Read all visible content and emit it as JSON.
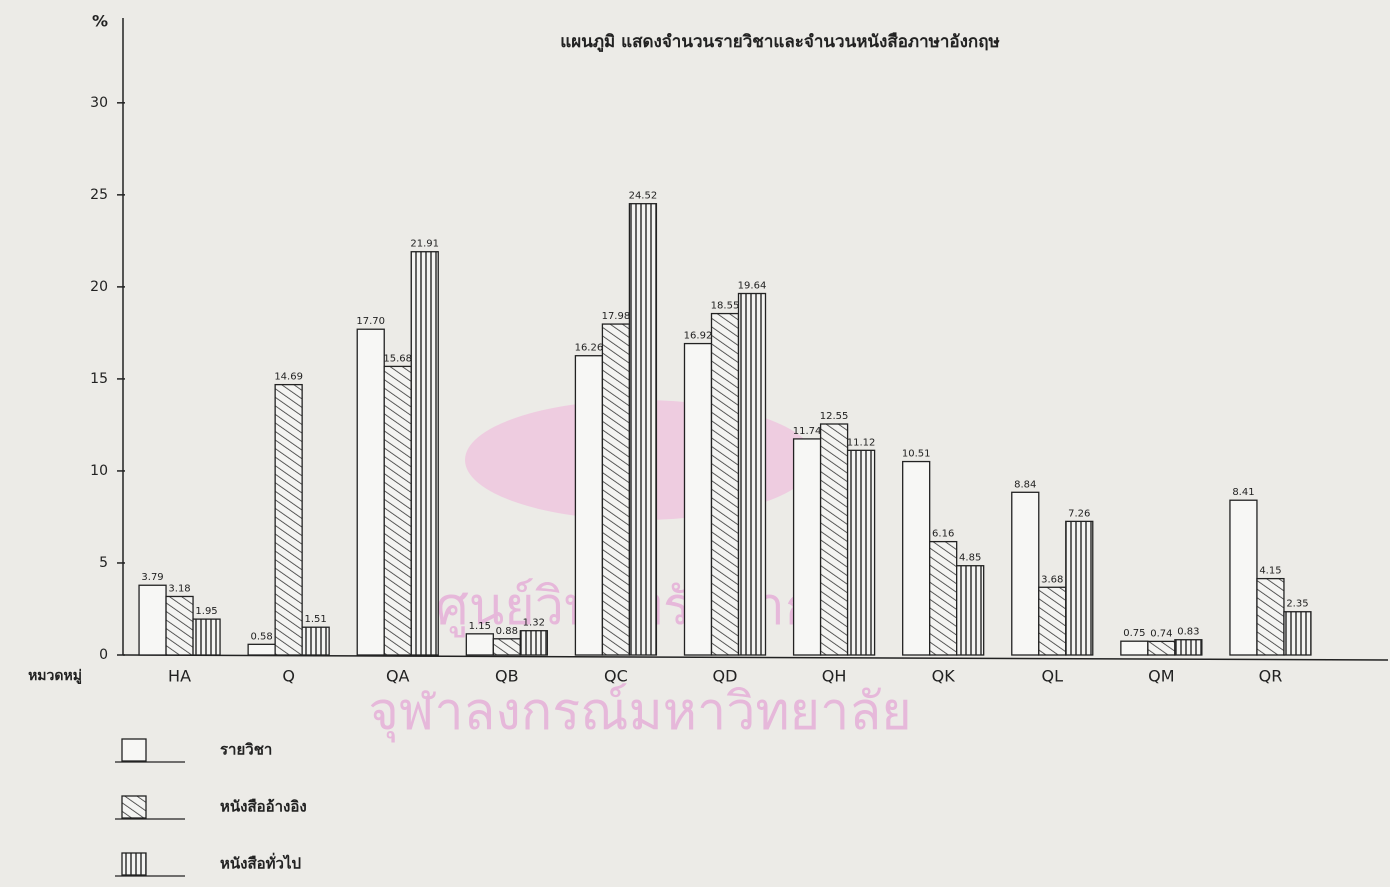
{
  "chart_data": {
    "type": "bar",
    "title": "แผนภูมิ แสดงจำนวนรายวิชาและจำนวนหนังสือภาษาอังกฤษ",
    "y_label": "%",
    "x_label": "หมวดหมู่",
    "watermark": [
      "ศูนย์วิทยทรัพยากร",
      "จุฬาลงกรณ์มหาวิทยาลัย"
    ],
    "categories": [
      "HA",
      "Q",
      "QA",
      "QB",
      "QC",
      "QD",
      "QH",
      "QK",
      "QL",
      "QM",
      "QR"
    ],
    "series": [
      {
        "name": "รายวิชา",
        "values": [
          3.79,
          0.58,
          17.7,
          1.15,
          16.26,
          16.92,
          11.74,
          10.51,
          8.84,
          0.75,
          8.41
        ],
        "value_labels": [
          "3.79",
          "0.58",
          "17.70",
          "1.15",
          "16.26",
          "16.92",
          "11.74",
          "10.51",
          "8.84",
          "0.75",
          "8.41"
        ]
      },
      {
        "name": "หนังสืออ้างอิง",
        "values": [
          3.18,
          14.69,
          15.68,
          0.88,
          17.98,
          18.55,
          12.55,
          6.16,
          3.68,
          0.74,
          4.15
        ],
        "value_labels": [
          "3.18",
          "14.69",
          "15.68",
          "0.88",
          "17.98",
          "18.55",
          "12.55",
          "6.16",
          "3.68",
          "0.74",
          "4.15"
        ]
      },
      {
        "name": "หนังสือทั่วไป",
        "values": [
          1.95,
          1.51,
          21.91,
          1.32,
          24.52,
          19.64,
          11.12,
          4.85,
          7.26,
          0.83,
          2.35
        ],
        "value_labels": [
          "1.95",
          "1.51",
          "21.91",
          "1.32",
          "24.52",
          "19.64",
          "11.12",
          "4.85",
          "7.26",
          "0.83",
          "2.35"
        ]
      }
    ],
    "ylim": [
      0,
      34.5
    ],
    "yticks": [
      0,
      5,
      10,
      15,
      20,
      25,
      30
    ]
  }
}
